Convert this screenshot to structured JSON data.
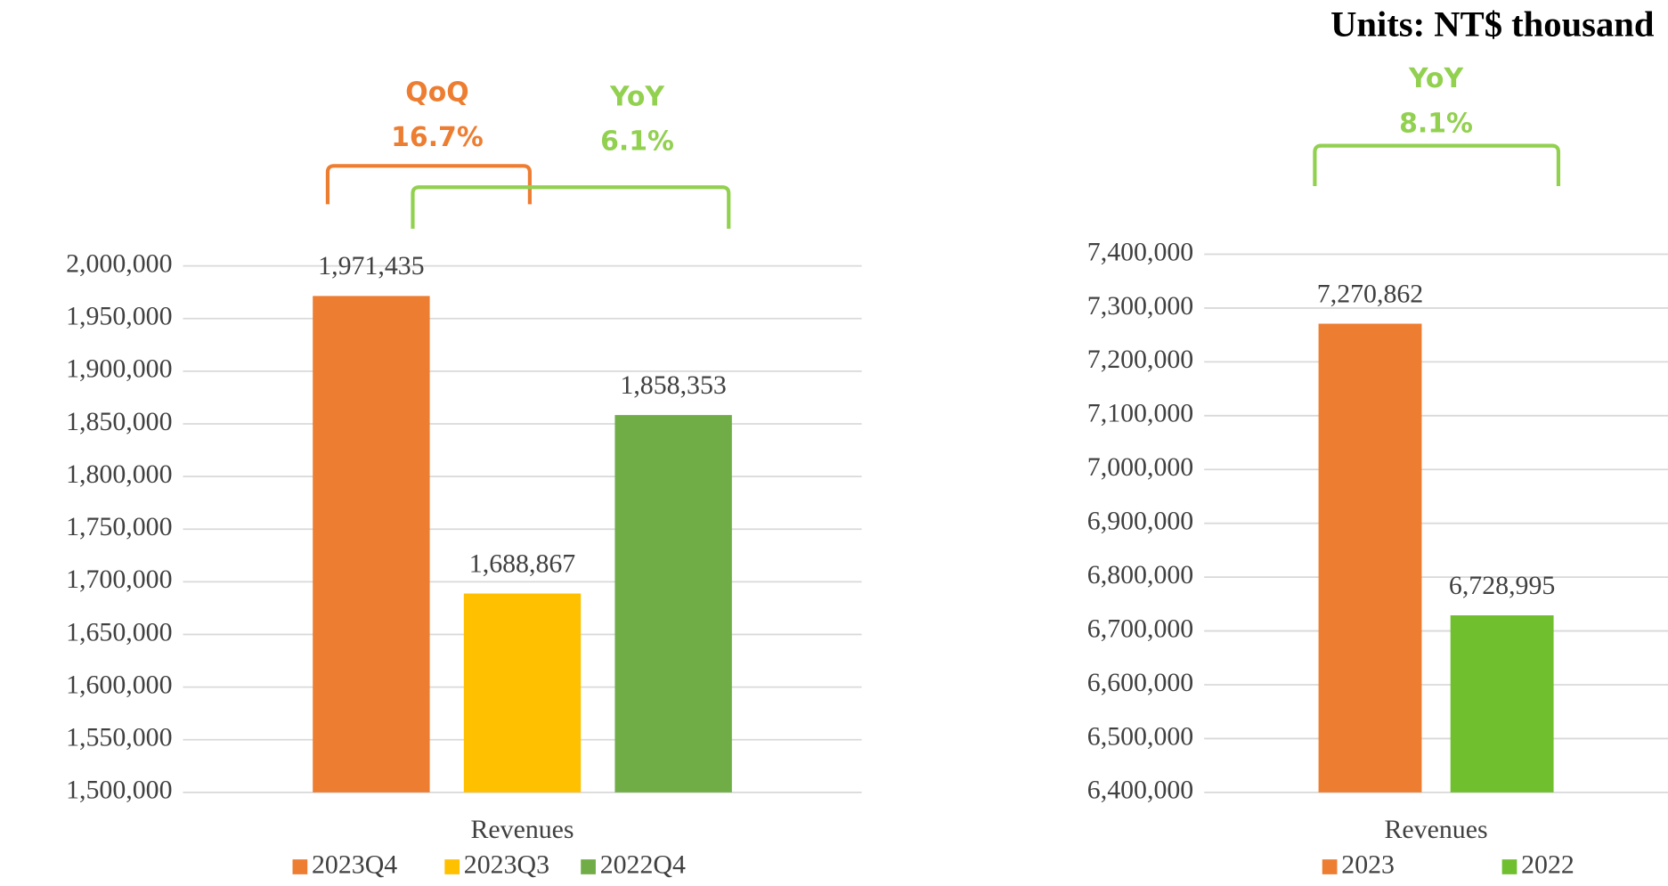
{
  "units": "Units: NT$ thousand",
  "chart_data": [
    {
      "type": "bar",
      "categories": [
        "Revenues"
      ],
      "series": [
        {
          "name": "2023Q4",
          "color": "#ed7d31",
          "values": [
            1971435
          ],
          "value_labels": [
            "1,971,435"
          ]
        },
        {
          "name": "2023Q3",
          "color": "#ffc000",
          "values": [
            1688867
          ],
          "value_labels": [
            "1,688,867"
          ]
        },
        {
          "name": "2022Q4",
          "color": "#70ad47",
          "values": [
            1858353
          ],
          "value_labels": [
            "1,858,353"
          ]
        }
      ],
      "ylim": [
        1500000,
        2000000
      ],
      "yticks": [
        {
          "value": 1500000,
          "label": "1,500,000"
        },
        {
          "value": 1550000,
          "label": "1,550,000"
        },
        {
          "value": 1600000,
          "label": "1,600,000"
        },
        {
          "value": 1650000,
          "label": "1,650,000"
        },
        {
          "value": 1700000,
          "label": "1,700,000"
        },
        {
          "value": 1750000,
          "label": "1,750,000"
        },
        {
          "value": 1800000,
          "label": "1,800,000"
        },
        {
          "value": 1850000,
          "label": "1,850,000"
        },
        {
          "value": 1900000,
          "label": "1,900,000"
        },
        {
          "value": 1950000,
          "label": "1,950,000"
        },
        {
          "value": 2000000,
          "label": "2,000,000"
        }
      ],
      "grid": true,
      "annotations": [
        {
          "label": "QoQ",
          "text": "16.7%",
          "color": "#ed7d31"
        },
        {
          "label": "YoY",
          "text": "6.1%",
          "color": "#92d050"
        }
      ]
    },
    {
      "type": "bar",
      "categories": [
        "Revenues"
      ],
      "series": [
        {
          "name": "2023",
          "color": "#ed7d31",
          "values": [
            7270862
          ],
          "value_labels": [
            "7,270,862"
          ]
        },
        {
          "name": "2022",
          "color": "#70bf2f",
          "values": [
            6728995
          ],
          "value_labels": [
            "6,728,995"
          ]
        }
      ],
      "ylim": [
        6400000,
        7400000
      ],
      "yticks": [
        {
          "value": 6400000,
          "label": "6,400,000"
        },
        {
          "value": 6500000,
          "label": "6,500,000"
        },
        {
          "value": 6600000,
          "label": "6,600,000"
        },
        {
          "value": 6700000,
          "label": "6,700,000"
        },
        {
          "value": 6800000,
          "label": "6,800,000"
        },
        {
          "value": 6900000,
          "label": "6,900,000"
        },
        {
          "value": 7000000,
          "label": "7,000,000"
        },
        {
          "value": 7100000,
          "label": "7,100,000"
        },
        {
          "value": 7200000,
          "label": "7,200,000"
        },
        {
          "value": 7300000,
          "label": "7,300,000"
        },
        {
          "value": 7400000,
          "label": "7,400,000"
        }
      ],
      "grid": true,
      "annotations": [
        {
          "label": "YoY",
          "text": "8.1%",
          "color": "#92d050"
        }
      ]
    }
  ]
}
